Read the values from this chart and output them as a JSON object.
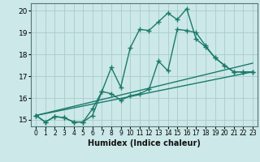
{
  "title": "",
  "xlabel": "Humidex (Indice chaleur)",
  "ylabel": "",
  "bg_color": "#cce8e8",
  "grid_color": "#aacccc",
  "line_color": "#1a7a6a",
  "xlim": [
    -0.5,
    23.5
  ],
  "ylim": [
    14.7,
    20.35
  ],
  "xticks": [
    0,
    1,
    2,
    3,
    4,
    5,
    6,
    7,
    8,
    9,
    10,
    11,
    12,
    13,
    14,
    15,
    16,
    17,
    18,
    19,
    20,
    21,
    22,
    23
  ],
  "yticks": [
    15,
    16,
    17,
    18,
    19,
    20
  ],
  "series_zigzag1": {
    "x": [
      0,
      1,
      2,
      3,
      4,
      5,
      6,
      7,
      8,
      9,
      10,
      11,
      12,
      13,
      14,
      15,
      16,
      17,
      18,
      19,
      20,
      21,
      22,
      23
    ],
    "y": [
      15.2,
      14.9,
      15.15,
      15.1,
      14.9,
      14.9,
      15.5,
      16.3,
      17.4,
      16.5,
      18.3,
      19.15,
      19.1,
      19.5,
      19.9,
      19.6,
      20.1,
      18.7,
      18.35,
      17.85,
      17.5,
      17.2,
      17.2,
      17.2
    ]
  },
  "series_zigzag2": {
    "x": [
      0,
      1,
      2,
      3,
      4,
      5,
      6,
      7,
      8,
      9,
      10,
      11,
      12,
      13,
      14,
      15,
      16,
      17,
      18,
      19,
      20,
      21,
      22,
      23
    ],
    "y": [
      15.2,
      14.9,
      15.15,
      15.1,
      14.9,
      14.9,
      15.2,
      16.3,
      16.2,
      15.9,
      16.1,
      16.2,
      16.4,
      17.7,
      17.25,
      19.15,
      19.1,
      19.0,
      18.4,
      17.85,
      17.5,
      17.2,
      17.2,
      17.2
    ]
  },
  "straight_line1": {
    "x": [
      0,
      23
    ],
    "y": [
      15.2,
      17.2
    ]
  },
  "straight_line2": {
    "x": [
      0,
      23
    ],
    "y": [
      15.2,
      17.6
    ]
  },
  "marker": "+",
  "markersize": 4,
  "linewidth": 1.0
}
